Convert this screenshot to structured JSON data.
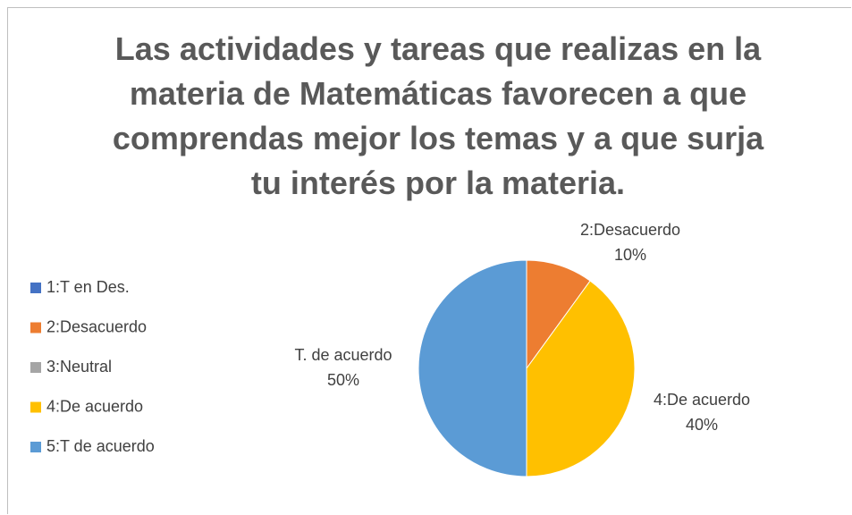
{
  "chart_data": {
    "type": "pie",
    "title": "Las actividades y tareas que realizas en la materia de Matemáticas favorecen a que comprendas mejor los temas y a que surja tu interés por la materia.",
    "categories": [
      "1:T en Des.",
      "2:Desacuerdo",
      "3:Neutral",
      "4:De acuerdo",
      "5:T de acuerdo"
    ],
    "values": [
      0,
      10,
      0,
      40,
      50
    ],
    "value_labels": [
      null,
      "10%",
      null,
      "40%",
      "50%"
    ],
    "label_names": [
      null,
      "2:Desacuerdo",
      null,
      "4:De acuerdo",
      "T. de acuerdo"
    ],
    "colors": [
      "#4472c4",
      "#ed7d31",
      "#a5a5a5",
      "#ffc000",
      "#5b9bd5"
    ],
    "legend": "left"
  }
}
